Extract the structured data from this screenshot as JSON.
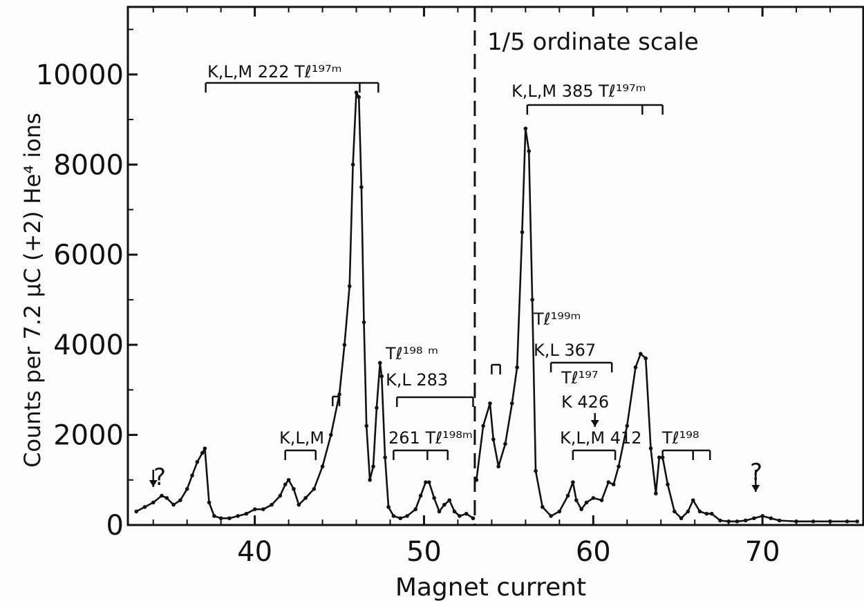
{
  "chart_data": {
    "type": "line",
    "xlabel": "Magnet current",
    "ylabel": "Counts per 7.2 μC (+2) He⁴ ions",
    "xlim": [
      32.5,
      76
    ],
    "ylim": [
      0,
      11500
    ],
    "x_ticks": [
      40,
      50,
      60,
      70
    ],
    "y_ticks": [
      0,
      2000,
      4000,
      6000,
      8000,
      10000
    ],
    "x_tick_labels": [
      "40",
      "50",
      "60",
      "70"
    ],
    "y_tick_labels": [
      "0",
      "2000",
      "4000",
      "6000",
      "8000",
      "10000"
    ],
    "scale_change_x": 53,
    "scale_note": "1/5 ordinate scale",
    "grid": false,
    "series": [
      {
        "values_left_x": [
          33,
          33.5,
          34,
          34.5,
          34.8,
          35.2,
          35.6,
          36,
          36.3,
          36.6,
          36.9,
          37.05,
          37.3,
          37.6,
          38,
          38.5,
          39,
          39.5,
          40,
          40.5,
          41,
          41.5,
          41.8,
          42,
          42.3,
          42.6,
          43,
          43.5,
          44,
          44.5,
          45,
          45.3,
          45.6,
          45.8,
          46.0,
          46.15,
          46.3,
          46.45,
          46.6,
          46.8,
          47.0,
          47.2,
          47.4,
          47.5,
          47.7,
          47.9,
          48.2,
          48.6,
          49,
          49.5,
          49.8,
          50.1,
          50.3,
          50.6,
          50.9,
          51.2,
          51.5,
          51.8,
          52.1,
          52.5,
          52.9
        ],
        "values_left_y": [
          300,
          400,
          500,
          650,
          600,
          450,
          550,
          800,
          1100,
          1400,
          1600,
          1700,
          500,
          200,
          150,
          150,
          200,
          250,
          350,
          350,
          450,
          650,
          900,
          1000,
          800,
          450,
          600,
          800,
          1300,
          2000,
          2900,
          4000,
          5300,
          8000,
          9600,
          9500,
          7500,
          4500,
          2200,
          1000,
          1300,
          2600,
          3600,
          3300,
          1500,
          400,
          200,
          150,
          200,
          350,
          650,
          950,
          950,
          600,
          300,
          450,
          550,
          300,
          200,
          250,
          150
        ],
        "values_right_x": [
          53.1,
          53.5,
          53.9,
          54.1,
          54.4,
          54.8,
          55.2,
          55.5,
          55.8,
          56.0,
          56.2,
          56.4,
          56.6,
          57,
          57.5,
          58,
          58.5,
          58.8,
          59,
          59.3,
          59.6,
          60,
          60.5,
          60.9,
          61.2,
          61.5,
          62,
          62.5,
          62.8,
          63.1,
          63.4,
          63.7,
          63.9,
          64.1,
          64.4,
          64.8,
          65.2,
          65.6,
          65.9,
          66.3,
          66.7,
          67,
          67.5,
          68,
          68.5,
          69,
          69.5,
          70,
          70.5,
          71,
          72,
          73,
          74,
          75,
          75.6
        ],
        "values_right_y": [
          1000,
          2200,
          2700,
          1900,
          1300,
          1800,
          2700,
          3500,
          6500,
          8800,
          8300,
          5000,
          1200,
          400,
          200,
          300,
          650,
          950,
          550,
          350,
          500,
          600,
          550,
          950,
          900,
          1300,
          2200,
          3500,
          3800,
          3700,
          1700,
          700,
          1500,
          1500,
          900,
          300,
          150,
          300,
          550,
          300,
          250,
          250,
          100,
          80,
          80,
          100,
          150,
          200,
          150,
          100,
          80,
          80,
          80,
          80,
          80
        ]
      }
    ],
    "annotations": {
      "bracket1": "K,L,M 222  Tℓ¹⁹⁷ᵐ",
      "bracket2": "K,L,M 385  Tℓ¹⁹⁷ᵐ",
      "tl198m": "Tℓ¹⁹⁸ ᵐ",
      "kl283": "K,L  283",
      "klm": "K,L,M",
      "t261": "261  Tℓ¹⁹⁸ᵐ",
      "tl199m": "Tℓ¹⁹⁹ᵐ",
      "kl367": "K,L  367",
      "tl197": "Tℓ¹⁹⁷",
      "k426": "K 426",
      "klm412": "K,L,M 412",
      "tl198": "Tℓ¹⁹⁸",
      "q1": "?",
      "q2": "?"
    }
  }
}
